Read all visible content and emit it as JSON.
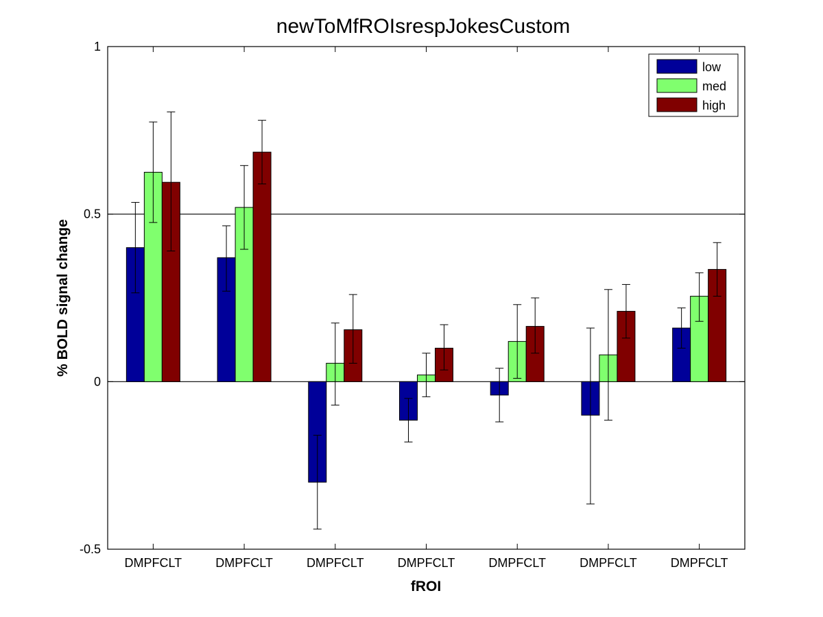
{
  "chart_data": {
    "type": "bar",
    "title": "newToMfROIsrespJokesCustom",
    "xlabel": "fROI",
    "ylabel": "% BOLD signal change",
    "categories": [
      "DMPFCLT",
      "DMPFCLT",
      "DMPFCLT",
      "DMPFCLT",
      "DMPFCLT",
      "DMPFCLT",
      "DMPFCLT"
    ],
    "ylim": [
      -0.5,
      1
    ],
    "yticks": [
      -0.5,
      0,
      0.5,
      1
    ],
    "ytick_labels": [
      "-0.5",
      "0",
      "0.5",
      "1"
    ],
    "reference_lines": [
      0,
      0.5
    ],
    "legend_position": "top-right",
    "series": [
      {
        "name": "low",
        "color": "#000099",
        "values": [
          0.4,
          0.37,
          -0.3,
          -0.115,
          -0.04,
          -0.1,
          0.16
        ],
        "err_low": [
          0.265,
          0.27,
          -0.44,
          -0.18,
          -0.12,
          -0.365,
          0.1
        ],
        "err_high": [
          0.535,
          0.465,
          -0.16,
          -0.05,
          0.04,
          0.16,
          0.22
        ]
      },
      {
        "name": "med",
        "color": "#80ff6e",
        "values": [
          0.625,
          0.52,
          0.055,
          0.02,
          0.12,
          0.08,
          0.255
        ],
        "err_low": [
          0.475,
          0.395,
          -0.07,
          -0.045,
          0.01,
          -0.115,
          0.18
        ],
        "err_high": [
          0.775,
          0.645,
          0.175,
          0.085,
          0.23,
          0.275,
          0.325
        ]
      },
      {
        "name": "high",
        "color": "#800000",
        "values": [
          0.595,
          0.685,
          0.155,
          0.1,
          0.165,
          0.21,
          0.335
        ],
        "err_low": [
          0.39,
          0.59,
          0.055,
          0.035,
          0.085,
          0.13,
          0.255
        ],
        "err_high": [
          0.805,
          0.78,
          0.26,
          0.17,
          0.25,
          0.29,
          0.415
        ]
      }
    ]
  }
}
